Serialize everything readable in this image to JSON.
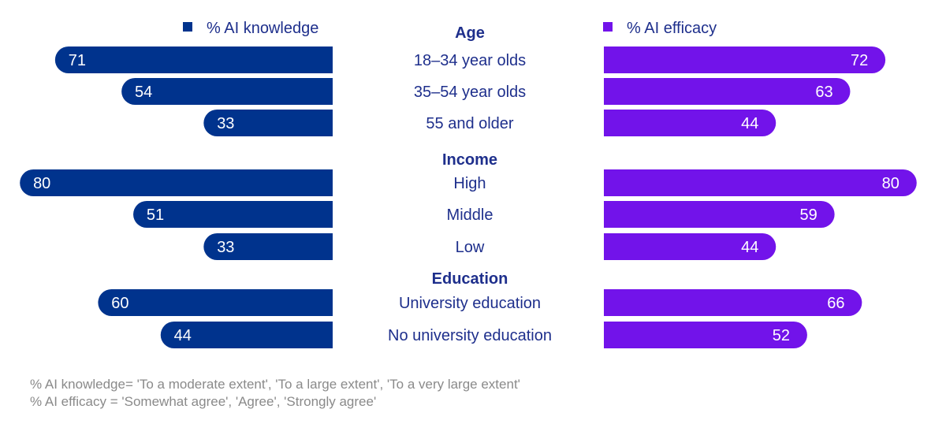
{
  "colors": {
    "knowledge": "#00338d",
    "efficacy": "#7213ea",
    "label": "#1e2f8c",
    "footnote": "#8a8a8a"
  },
  "chart_data": {
    "type": "bar",
    "orientation": "horizontal-diverging",
    "series": [
      {
        "name": "% AI knowledge",
        "side": "left",
        "values": [
          71,
          54,
          33,
          80,
          51,
          33,
          60,
          44
        ]
      },
      {
        "name": "% AI efficacy",
        "side": "right",
        "values": [
          72,
          63,
          44,
          80,
          59,
          44,
          66,
          52
        ]
      }
    ],
    "groups": [
      {
        "name": "Age",
        "categories": [
          "18–34 year olds",
          "35–54 year olds",
          "55 and older"
        ]
      },
      {
        "name": "Income",
        "categories": [
          "High",
          "Middle",
          "Low"
        ]
      },
      {
        "name": "Education",
        "categories": [
          "University education",
          "No university education"
        ]
      }
    ],
    "legend_position": "top"
  },
  "footnotes": [
    "% AI knowledge= 'To a moderate extent', 'To a large extent', 'To a very large extent'",
    "% AI efficacy = 'Somewhat agree', 'Agree', 'Strongly agree'"
  ]
}
